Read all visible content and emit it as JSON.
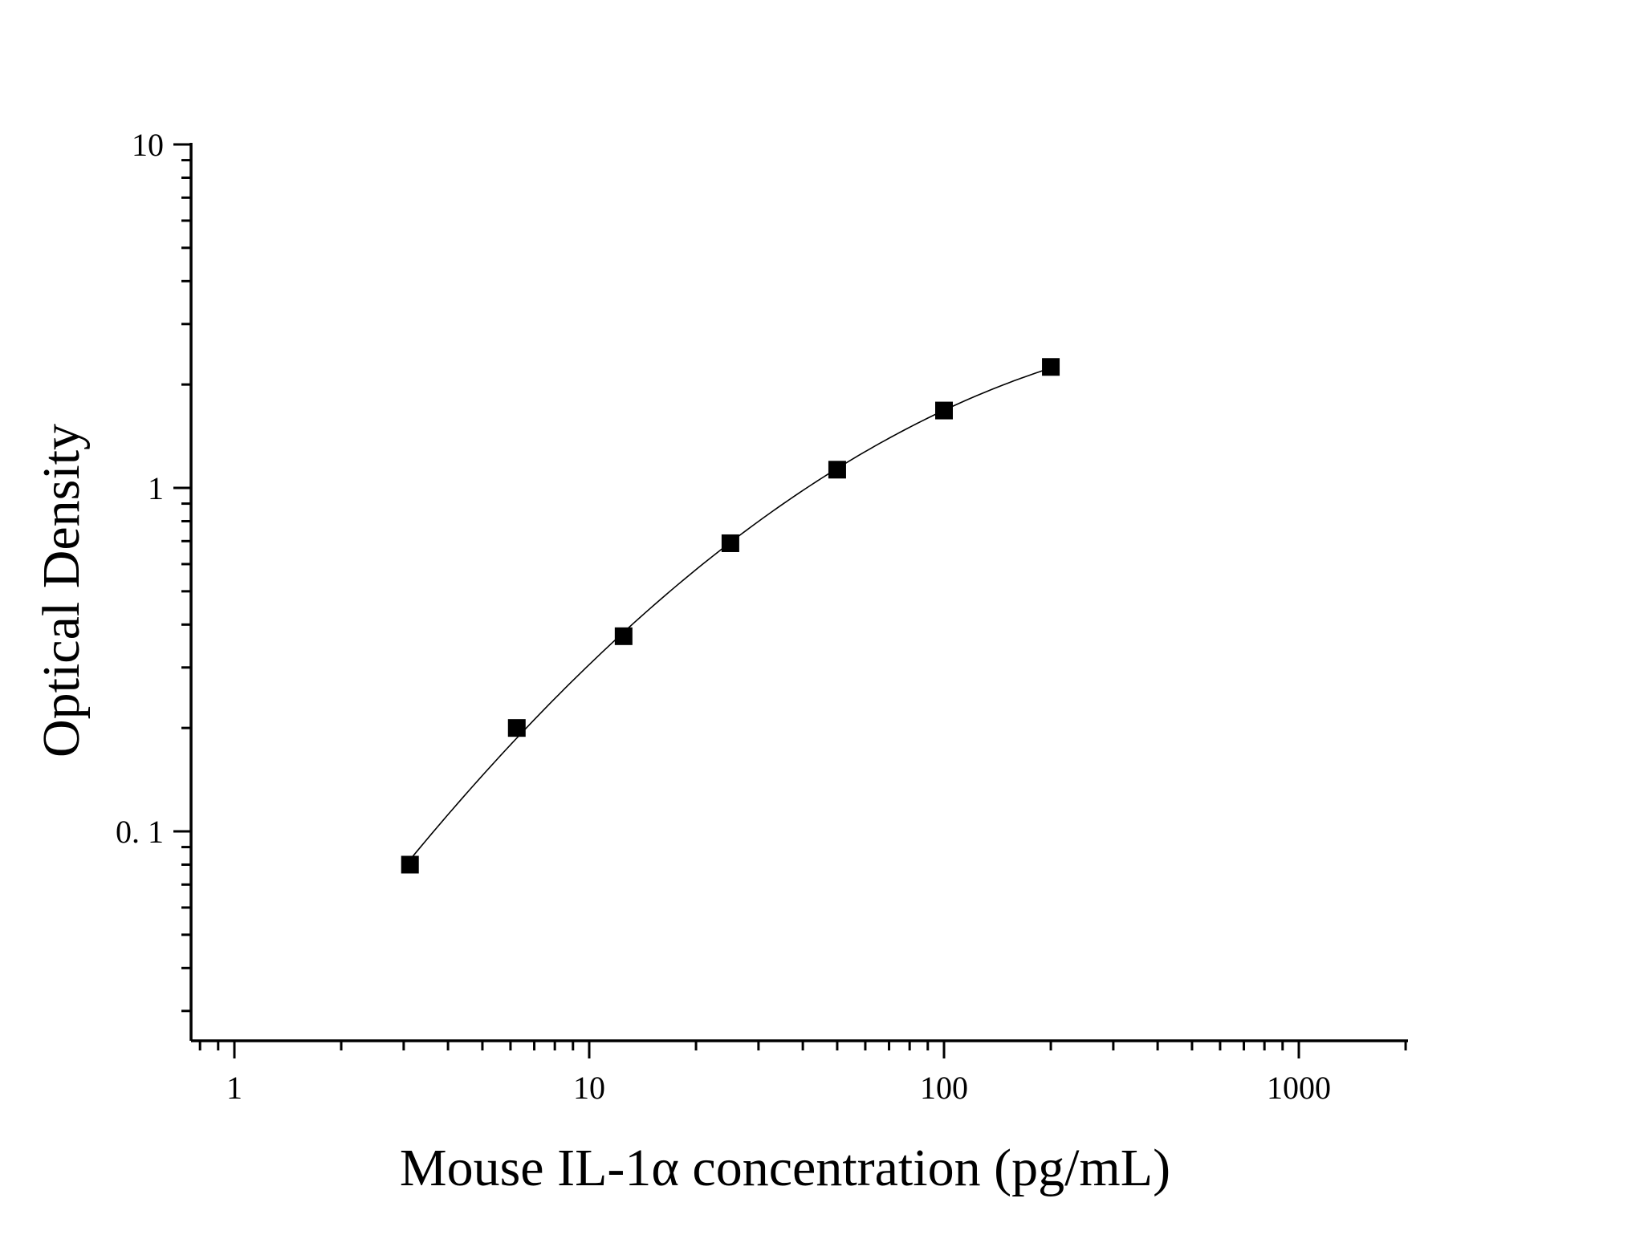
{
  "chart_data": {
    "type": "scatter",
    "title": "",
    "xlabel": "Mouse IL-1α concentration (pg/mL)",
    "ylabel": "Optical Density",
    "x_scale": "log",
    "y_scale": "log",
    "xlim": [
      0.75,
      2000
    ],
    "ylim": [
      0.025,
      10
    ],
    "x_ticks": [
      1,
      10,
      100,
      1000
    ],
    "x_tick_labels": [
      "1",
      "10",
      "100",
      "1000"
    ],
    "y_ticks": [
      0.1,
      1,
      10
    ],
    "y_tick_labels": [
      "0. 1",
      "1",
      "10"
    ],
    "grid": false,
    "legend": "none",
    "marker": "square",
    "marker_color": "#000000",
    "series": [
      {
        "x": [
          3.125,
          6.25,
          12.5,
          25,
          50,
          100,
          200
        ],
        "y": [
          0.08,
          0.2,
          0.37,
          0.69,
          1.13,
          1.68,
          2.25
        ],
        "fit_line": true
      }
    ]
  }
}
